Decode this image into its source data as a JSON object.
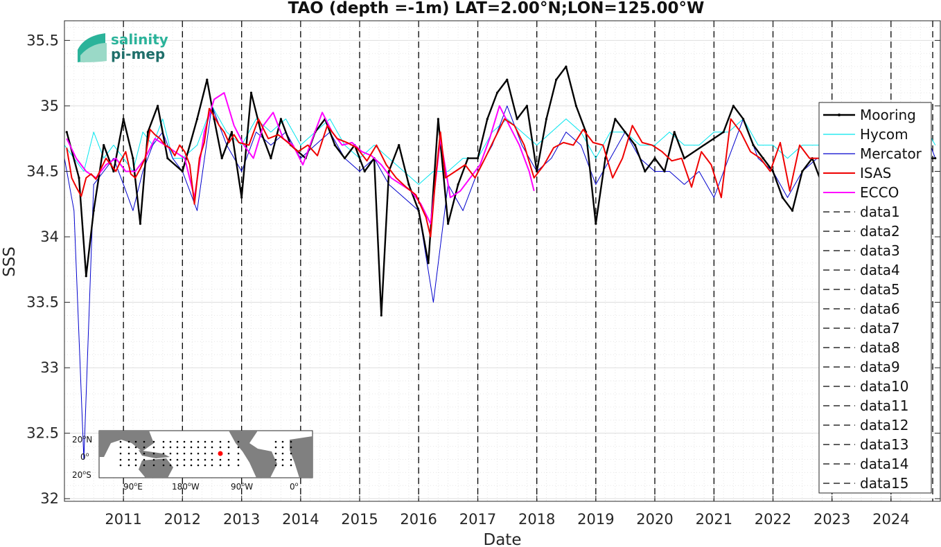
{
  "chart_data": {
    "type": "line",
    "title": "TAO (depth =-1m) LAT=2.00°N;LON=125.00°W",
    "xlabel": "Date",
    "ylabel": "SSS",
    "xlim": [
      "2010-01-01",
      "2024-11-01"
    ],
    "ylim": [
      31.98,
      35.65
    ],
    "x_ticks": [
      "2011",
      "2012",
      "2013",
      "2014",
      "2015",
      "2016",
      "2017",
      "2018",
      "2019",
      "2020",
      "2021",
      "2022",
      "2023",
      "2024"
    ],
    "y_ticks": [
      "32",
      "32.5",
      "33",
      "33.5",
      "34",
      "34.5",
      "35",
      "35.5"
    ],
    "grid": true,
    "legend_position": "right",
    "vertical_lines": [
      "2011-01-01",
      "2012-01-01",
      "2013-01-01",
      "2014-01-01",
      "2015-01-01",
      "2016-01-01",
      "2017-01-01",
      "2018-01-01",
      "2019-01-01",
      "2020-01-01",
      "2021-01-01",
      "2022-01-01",
      "2023-01-01",
      "2024-01-01",
      "2024-09-15"
    ],
    "series": [
      {
        "name": "Mooring",
        "color": "#000000",
        "style": "solid-dots",
        "x": [
          "2010-01-15",
          "2010-04-01",
          "2010-05-15",
          "2010-07-01",
          "2010-09-01",
          "2010-11-01",
          "2011-01-01",
          "2011-03-01",
          "2011-04-15",
          "2011-06-01",
          "2011-08-01",
          "2011-10-01",
          "2012-01-01",
          "2012-04-01",
          "2012-06-01",
          "2012-07-15",
          "2012-09-01",
          "2012-11-01",
          "2013-01-01",
          "2013-03-01",
          "2013-05-01",
          "2013-07-01",
          "2013-09-01",
          "2013-11-01",
          "2014-02-01",
          "2014-04-01",
          "2014-06-01",
          "2014-08-01",
          "2014-10-01",
          "2014-12-01",
          "2015-02-01",
          "2015-04-01",
          "2015-05-15",
          "2015-07-01",
          "2015-09-01",
          "2015-11-01",
          "2016-01-01",
          "2016-03-01",
          "2016-05-01",
          "2016-07-01",
          "2016-09-01",
          "2016-11-01",
          "2017-01-01",
          "2017-03-01",
          "2017-05-01",
          "2017-07-01",
          "2017-09-01",
          "2017-11-01",
          "2018-01-01",
          "2018-03-01",
          "2018-05-01",
          "2018-07-01",
          "2018-09-01",
          "2018-11-01",
          "2019-01-01",
          "2019-03-01",
          "2019-05-01",
          "2019-07-01",
          "2019-09-01",
          "2019-11-01",
          "2020-01-01",
          "2020-03-01",
          "2020-05-01",
          "2020-07-01",
          "2021-03-01",
          "2021-05-01",
          "2021-07-01",
          "2021-09-01",
          "2021-11-01",
          "2022-01-01",
          "2022-03-01",
          "2022-05-01",
          "2022-07-01",
          "2022-09-01",
          "2022-11-01",
          "2024-08-01",
          "2024-10-01"
        ],
        "y": [
          34.8,
          34.45,
          33.7,
          34.2,
          34.7,
          34.5,
          34.9,
          34.6,
          34.1,
          34.8,
          35.0,
          34.6,
          34.5,
          34.9,
          35.2,
          34.9,
          34.6,
          34.8,
          34.3,
          35.1,
          34.8,
          34.6,
          34.9,
          34.7,
          34.6,
          34.8,
          34.9,
          34.7,
          34.6,
          34.7,
          34.5,
          34.6,
          33.4,
          34.5,
          34.7,
          34.4,
          34.2,
          33.8,
          34.9,
          34.1,
          34.4,
          34.6,
          34.6,
          34.9,
          35.1,
          35.2,
          34.9,
          35.0,
          34.5,
          34.9,
          35.2,
          35.3,
          35.0,
          34.8,
          34.1,
          34.6,
          34.9,
          34.8,
          34.7,
          34.5,
          34.6,
          34.5,
          34.8,
          34.6,
          34.8,
          35.0,
          34.9,
          34.7,
          34.6,
          34.5,
          34.3,
          34.2,
          34.5,
          34.6,
          34.4,
          34.6,
          34.6
        ]
      },
      {
        "name": "Hycom",
        "color": "#00e5ee",
        "style": "solid",
        "x": [
          "2010-01-01",
          "2010-03-01",
          "2010-05-01",
          "2010-07-01",
          "2010-09-01",
          "2010-11-01",
          "2011-01-01",
          "2011-03-01",
          "2011-05-01",
          "2011-07-01",
          "2011-09-01",
          "2011-11-01",
          "2012-01-01",
          "2012-04-01",
          "2012-07-01",
          "2012-10-01",
          "2013-01-01",
          "2013-04-01",
          "2013-07-01",
          "2013-10-01",
          "2014-01-01",
          "2014-04-01",
          "2014-07-01",
          "2014-10-01",
          "2015-01-01",
          "2015-04-01",
          "2015-07-01",
          "2015-10-01",
          "2016-01-01",
          "2016-04-01",
          "2016-07-01",
          "2016-10-01",
          "2017-01-01",
          "2017-04-01",
          "2017-07-01",
          "2017-10-01",
          "2018-01-01",
          "2018-04-01",
          "2018-07-01",
          "2018-10-01",
          "2019-01-01",
          "2019-04-01",
          "2019-07-01",
          "2019-10-01",
          "2020-01-01",
          "2020-04-01",
          "2020-07-01",
          "2020-10-01",
          "2021-01-01",
          "2021-04-01",
          "2021-07-01",
          "2021-10-01",
          "2022-01-01",
          "2022-04-01",
          "2022-07-01",
          "2022-10-01",
          "2023-01-01",
          "2023-04-01",
          "2023-07-01",
          "2023-10-01",
          "2024-01-01",
          "2024-04-01",
          "2024-07-01",
          "2024-10-01"
        ],
        "y": [
          34.7,
          34.6,
          34.5,
          34.8,
          34.6,
          34.7,
          34.6,
          34.5,
          34.8,
          34.7,
          34.9,
          34.6,
          34.6,
          34.7,
          35.0,
          34.8,
          34.7,
          34.9,
          34.8,
          34.9,
          34.7,
          34.8,
          34.9,
          34.7,
          34.6,
          34.7,
          34.6,
          34.5,
          34.4,
          34.5,
          34.5,
          34.6,
          34.6,
          34.8,
          34.9,
          34.8,
          34.7,
          34.8,
          34.9,
          34.8,
          34.6,
          34.8,
          34.8,
          34.7,
          34.7,
          34.8,
          34.7,
          34.7,
          34.8,
          34.8,
          34.9,
          34.7,
          34.7,
          34.6,
          34.7,
          34.7,
          34.7,
          34.8,
          34.9,
          34.8,
          34.7,
          34.8,
          34.9,
          34.7
        ]
      },
      {
        "name": "Mercator",
        "color": "#0000cd",
        "style": "solid",
        "x": [
          "2010-01-01",
          "2010-03-01",
          "2010-05-01",
          "2010-07-01",
          "2010-09-01",
          "2010-11-01",
          "2011-01-01",
          "2011-03-01",
          "2011-05-01",
          "2011-07-01",
          "2011-09-01",
          "2011-11-01",
          "2012-01-01",
          "2012-04-01",
          "2012-07-01",
          "2012-10-01",
          "2013-01-01",
          "2013-04-01",
          "2013-07-01",
          "2013-10-01",
          "2014-01-01",
          "2014-04-01",
          "2014-07-01",
          "2014-10-01",
          "2015-01-01",
          "2015-04-01",
          "2015-07-01",
          "2015-10-01",
          "2016-01-01",
          "2016-04-01",
          "2016-07-01",
          "2016-10-01",
          "2017-01-01",
          "2017-04-01",
          "2017-07-01",
          "2017-10-01",
          "2018-01-01",
          "2018-04-01",
          "2018-07-01",
          "2018-10-01",
          "2019-01-01",
          "2019-04-01",
          "2019-07-01",
          "2019-10-01",
          "2020-01-01",
          "2020-04-01",
          "2020-07-01",
          "2020-10-01",
          "2021-01-01",
          "2021-04-01",
          "2021-07-01",
          "2021-10-01",
          "2022-01-01",
          "2022-04-01",
          "2022-07-01",
          "2022-10-01",
          "2023-01-01",
          "2023-04-01",
          "2023-07-01",
          "2023-10-01",
          "2024-01-01",
          "2024-04-01",
          "2024-07-01",
          "2024-10-01"
        ],
        "y": [
          34.6,
          34.2,
          32.3,
          34.4,
          34.5,
          34.6,
          34.4,
          34.2,
          34.5,
          34.7,
          34.8,
          34.6,
          34.5,
          34.2,
          35.0,
          34.7,
          34.5,
          34.8,
          34.7,
          34.8,
          34.6,
          34.7,
          34.8,
          34.6,
          34.5,
          34.6,
          34.4,
          34.3,
          34.2,
          33.5,
          34.4,
          34.2,
          34.5,
          34.7,
          35.0,
          34.7,
          34.5,
          34.6,
          34.8,
          34.7,
          34.4,
          34.6,
          34.8,
          34.6,
          34.5,
          34.5,
          34.4,
          34.5,
          34.3,
          34.6,
          34.9,
          34.6,
          34.5,
          34.3,
          34.5,
          34.6,
          34.6,
          34.7,
          35.0,
          34.7,
          34.6,
          34.7,
          34.9,
          34.6
        ]
      },
      {
        "name": "ISAS",
        "color": "#ee0000",
        "style": "solid",
        "x": [
          "2010-01-15",
          "2010-02-15",
          "2010-03-15",
          "2010-04-15",
          "2010-05-15",
          "2010-06-15",
          "2010-07-15",
          "2010-08-15",
          "2010-09-15",
          "2010-10-15",
          "2010-11-15",
          "2010-12-15",
          "2011-01-15",
          "2011-02-15",
          "2011-03-15",
          "2011-04-15",
          "2011-05-15",
          "2011-06-15",
          "2011-07-15",
          "2011-08-15",
          "2011-09-15",
          "2011-10-15",
          "2011-11-15",
          "2011-12-15",
          "2012-01-15",
          "2012-02-15",
          "2012-03-15",
          "2012-04-15",
          "2012-05-15",
          "2012-06-15",
          "2012-07-15",
          "2012-08-15",
          "2012-09-15",
          "2012-10-15",
          "2012-11-15",
          "2012-12-15",
          "2013-02-15",
          "2013-04-15",
          "2013-06-15",
          "2013-08-15",
          "2013-10-15",
          "2013-12-15",
          "2014-02-15",
          "2014-04-15",
          "2014-06-15",
          "2014-08-15",
          "2014-10-15",
          "2014-12-15",
          "2015-02-15",
          "2015-04-15",
          "2015-06-15",
          "2015-08-15",
          "2015-10-15",
          "2015-12-15",
          "2016-02-15",
          "2016-03-15",
          "2016-04-15",
          "2016-05-15",
          "2016-06-15",
          "2016-08-15",
          "2016-10-15",
          "2016-12-15",
          "2017-02-15",
          "2017-04-15",
          "2017-06-15",
          "2017-08-15",
          "2017-10-15",
          "2017-12-15",
          "2018-02-15",
          "2018-04-15",
          "2018-06-15",
          "2018-08-15",
          "2018-10-15",
          "2018-12-15",
          "2019-02-15",
          "2019-04-15",
          "2019-06-15",
          "2019-08-15",
          "2019-10-15",
          "2019-12-15",
          "2020-02-15",
          "2020-04-15",
          "2020-06-15",
          "2020-08-15",
          "2020-10-15",
          "2020-12-15",
          "2021-02-15",
          "2021-04-15",
          "2021-06-15",
          "2021-08-15",
          "2021-10-15",
          "2021-12-15",
          "2022-02-15",
          "2022-04-15",
          "2022-06-15",
          "2022-08-15",
          "2022-10-15"
        ],
        "y": [
          34.68,
          34.45,
          34.38,
          34.31,
          34.45,
          34.48,
          34.44,
          34.52,
          34.6,
          34.55,
          34.5,
          34.58,
          34.65,
          34.48,
          34.45,
          34.52,
          34.6,
          34.82,
          34.78,
          34.75,
          34.7,
          34.68,
          34.62,
          34.7,
          34.65,
          34.55,
          34.25,
          34.6,
          34.72,
          34.98,
          34.92,
          34.85,
          34.8,
          34.72,
          34.78,
          34.72,
          34.7,
          34.9,
          34.75,
          34.78,
          34.72,
          34.65,
          34.7,
          34.62,
          34.85,
          34.75,
          34.72,
          34.68,
          34.58,
          34.7,
          34.55,
          34.45,
          34.38,
          34.32,
          34.15,
          34.0,
          34.45,
          34.8,
          34.45,
          34.5,
          34.55,
          34.45,
          34.6,
          34.75,
          34.9,
          34.85,
          34.7,
          34.45,
          34.55,
          34.68,
          34.72,
          34.7,
          34.82,
          34.72,
          34.7,
          34.45,
          34.6,
          34.85,
          34.72,
          34.7,
          34.65,
          34.58,
          34.6,
          34.38,
          34.65,
          34.55,
          34.3,
          34.9,
          34.8,
          34.65,
          34.6,
          34.5,
          34.72,
          34.35,
          34.7,
          34.6,
          34.6
        ]
      },
      {
        "name": "ECCO",
        "color": "#ff00ff",
        "style": "solid",
        "x": [
          "2010-01-15",
          "2010-03-15",
          "2010-05-15",
          "2010-07-15",
          "2010-09-15",
          "2010-11-15",
          "2011-01-15",
          "2011-03-15",
          "2011-05-15",
          "2011-07-15",
          "2011-09-15",
          "2011-11-15",
          "2012-01-15",
          "2012-03-15",
          "2012-05-15",
          "2012-07-15",
          "2012-09-15",
          "2012-11-15",
          "2013-01-15",
          "2013-03-15",
          "2013-05-15",
          "2013-07-15",
          "2013-09-15",
          "2013-11-15",
          "2014-01-15",
          "2014-03-15",
          "2014-05-15",
          "2014-07-15",
          "2014-09-15",
          "2014-11-15",
          "2015-01-15",
          "2015-03-15",
          "2015-05-15",
          "2015-07-15",
          "2015-09-15",
          "2015-11-15",
          "2016-01-15",
          "2016-03-15",
          "2016-05-15",
          "2016-07-15",
          "2016-09-15",
          "2016-11-15",
          "2017-01-15",
          "2017-03-15",
          "2017-05-15",
          "2017-07-15",
          "2017-09-15",
          "2017-11-15",
          "2017-12-15"
        ],
        "y": [
          34.75,
          34.6,
          34.5,
          34.45,
          34.55,
          34.6,
          34.5,
          34.5,
          34.6,
          34.75,
          34.7,
          34.65,
          34.6,
          34.3,
          34.8,
          35.05,
          35.1,
          34.85,
          34.7,
          34.6,
          34.85,
          34.95,
          34.75,
          34.7,
          34.55,
          34.75,
          34.95,
          34.8,
          34.7,
          34.72,
          34.65,
          34.62,
          34.55,
          34.45,
          34.4,
          34.35,
          34.25,
          34.1,
          34.75,
          34.3,
          34.35,
          34.45,
          34.55,
          34.75,
          35.0,
          34.85,
          34.7,
          34.5,
          34.35
        ]
      }
    ],
    "legend_extra": [
      "data1",
      "data2",
      "data3",
      "data4",
      "data5",
      "data6",
      "data7",
      "data8",
      "data9",
      "data10",
      "data11",
      "data12",
      "data13",
      "data14",
      "data15"
    ]
  },
  "logo": {
    "line1": "salinity",
    "line2": "pi-mep"
  },
  "inset_map": {
    "lat_labels": [
      "20",
      "0",
      "20"
    ],
    "lat_suffix": [
      "N",
      "",
      "S"
    ],
    "lon_labels": [
      "90",
      "180",
      "90",
      "0"
    ],
    "lon_suffix": [
      "E",
      "W",
      "W",
      ""
    ],
    "land_color": "#808080",
    "marker_color": "#ff0000"
  }
}
